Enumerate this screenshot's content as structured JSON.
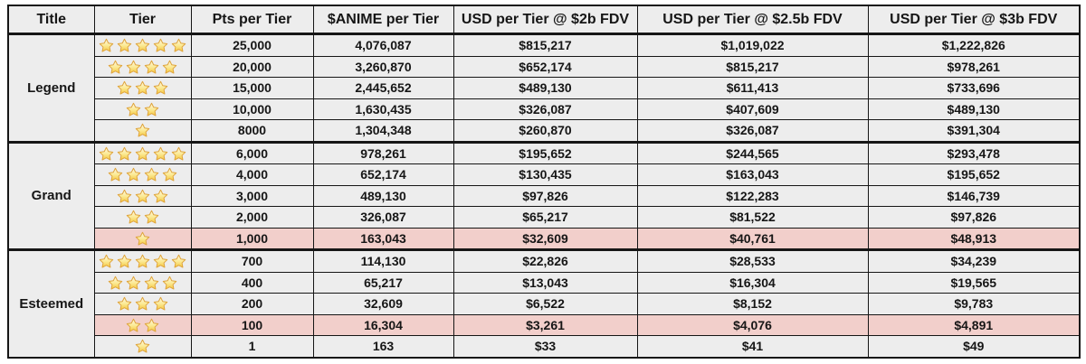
{
  "colors": {
    "cell_bg": "#ededed",
    "highlight_bg": "#f2cfcb",
    "border": "#161616",
    "text": "#161616",
    "star_gold": "#f5c63f",
    "star_outline": "#dfa43c"
  },
  "chart_data": {
    "type": "table",
    "headers": [
      "Title",
      "Tier",
      "Pts per Tier",
      "$ANIME per Tier",
      "USD per Tier @ $2b FDV",
      "USD per Tier @ $2.5b FDV",
      "USD per Tier @ $3b FDV"
    ],
    "groups": [
      {
        "title": "Legend",
        "rows": [
          {
            "stars": 5,
            "pts": "25,000",
            "anime": "4,076,087",
            "usd2b": "$815,217",
            "usd25b": "$1,019,022",
            "usd3b": "$1,222,826",
            "highlight": false
          },
          {
            "stars": 4,
            "pts": "20,000",
            "anime": "3,260,870",
            "usd2b": "$652,174",
            "usd25b": "$815,217",
            "usd3b": "$978,261",
            "highlight": false
          },
          {
            "stars": 3,
            "pts": "15,000",
            "anime": "2,445,652",
            "usd2b": "$489,130",
            "usd25b": "$611,413",
            "usd3b": "$733,696",
            "highlight": false
          },
          {
            "stars": 2,
            "pts": "10,000",
            "anime": "1,630,435",
            "usd2b": "$326,087",
            "usd25b": "$407,609",
            "usd3b": "$489,130",
            "highlight": false
          },
          {
            "stars": 1,
            "pts": "8000",
            "anime": "1,304,348",
            "usd2b": "$260,870",
            "usd25b": "$326,087",
            "usd3b": "$391,304",
            "highlight": false
          }
        ]
      },
      {
        "title": "Grand",
        "rows": [
          {
            "stars": 5,
            "pts": "6,000",
            "anime": "978,261",
            "usd2b": "$195,652",
            "usd25b": "$244,565",
            "usd3b": "$293,478",
            "highlight": false
          },
          {
            "stars": 4,
            "pts": "4,000",
            "anime": "652,174",
            "usd2b": "$130,435",
            "usd25b": "$163,043",
            "usd3b": "$195,652",
            "highlight": false
          },
          {
            "stars": 3,
            "pts": "3,000",
            "anime": "489,130",
            "usd2b": "$97,826",
            "usd25b": "$122,283",
            "usd3b": "$146,739",
            "highlight": false
          },
          {
            "stars": 2,
            "pts": "2,000",
            "anime": "326,087",
            "usd2b": "$65,217",
            "usd25b": "$81,522",
            "usd3b": "$97,826",
            "highlight": false
          },
          {
            "stars": 1,
            "pts": "1,000",
            "anime": "163,043",
            "usd2b": "$32,609",
            "usd25b": "$40,761",
            "usd3b": "$48,913",
            "highlight": true
          }
        ]
      },
      {
        "title": "Esteemed",
        "rows": [
          {
            "stars": 5,
            "pts": "700",
            "anime": "114,130",
            "usd2b": "$22,826",
            "usd25b": "$28,533",
            "usd3b": "$34,239",
            "highlight": false
          },
          {
            "stars": 4,
            "pts": "400",
            "anime": "65,217",
            "usd2b": "$13,043",
            "usd25b": "$16,304",
            "usd3b": "$19,565",
            "highlight": false
          },
          {
            "stars": 3,
            "pts": "200",
            "anime": "32,609",
            "usd2b": "$6,522",
            "usd25b": "$8,152",
            "usd3b": "$9,783",
            "highlight": false
          },
          {
            "stars": 2,
            "pts": "100",
            "anime": "16,304",
            "usd2b": "$3,261",
            "usd25b": "$4,076",
            "usd3b": "$4,891",
            "highlight": true
          },
          {
            "stars": 1,
            "pts": "1",
            "anime": "163",
            "usd2b": "$33",
            "usd25b": "$41",
            "usd3b": "$49",
            "highlight": false
          }
        ]
      }
    ]
  }
}
